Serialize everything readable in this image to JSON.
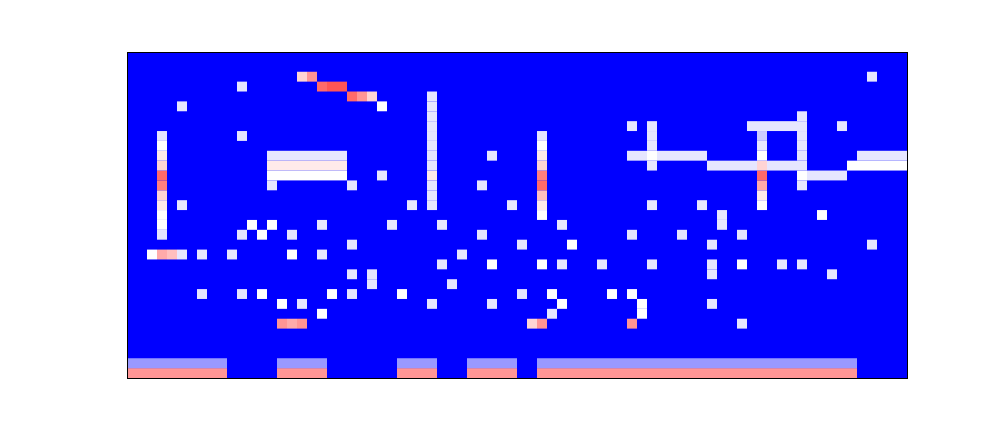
{
  "chart_data": {
    "type": "heatmap",
    "xlim": [
      0,
      78
    ],
    "ylim": [
      0,
      33
    ],
    "tick_labels": false,
    "color_range": [
      0,
      1
    ],
    "cells": [
      [
        17,
        30,
        0.6
      ],
      [
        18,
        30,
        0.75
      ],
      [
        19,
        29,
        0.85
      ],
      [
        20,
        29,
        0.9
      ],
      [
        21,
        29,
        0.9
      ],
      [
        22,
        28,
        0.85
      ],
      [
        23,
        28,
        0.75
      ],
      [
        24,
        28,
        0.6
      ],
      [
        25,
        27,
        0.5
      ],
      [
        3,
        14,
        0.45
      ],
      [
        3,
        15,
        0.5
      ],
      [
        3,
        16,
        0.5
      ],
      [
        3,
        17,
        0.55
      ],
      [
        3,
        18,
        0.6
      ],
      [
        3,
        19,
        0.8
      ],
      [
        3,
        20,
        0.85
      ],
      [
        3,
        21,
        0.6
      ],
      [
        3,
        22,
        0.55
      ],
      [
        3,
        23,
        0.5
      ],
      [
        3,
        24,
        0.45
      ],
      [
        41,
        16,
        0.5
      ],
      [
        41,
        17,
        0.55
      ],
      [
        41,
        18,
        0.65
      ],
      [
        41,
        19,
        0.85
      ],
      [
        41,
        20,
        0.8
      ],
      [
        41,
        21,
        0.6
      ],
      [
        41,
        22,
        0.55
      ],
      [
        41,
        23,
        0.5
      ],
      [
        41,
        24,
        0.45
      ],
      [
        63,
        17,
        0.5
      ],
      [
        63,
        18,
        0.55
      ],
      [
        63,
        19,
        0.7
      ],
      [
        63,
        20,
        0.85
      ],
      [
        63,
        21,
        0.6
      ],
      [
        63,
        22,
        0.5
      ],
      [
        63,
        23,
        0.45
      ],
      [
        63,
        24,
        0.4
      ],
      [
        30,
        17,
        0.45
      ],
      [
        30,
        18,
        0.45
      ],
      [
        30,
        19,
        0.45
      ],
      [
        30,
        20,
        0.55
      ],
      [
        30,
        21,
        0.45
      ],
      [
        30,
        22,
        0.45
      ],
      [
        30,
        23,
        0.45
      ],
      [
        30,
        24,
        0.45
      ],
      [
        30,
        25,
        0.45
      ],
      [
        30,
        26,
        0.45
      ],
      [
        30,
        27,
        0.45
      ],
      [
        30,
        28,
        0.45
      ],
      [
        52,
        21,
        0.45
      ],
      [
        52,
        22,
        0.5
      ],
      [
        52,
        23,
        0.45
      ],
      [
        52,
        24,
        0.45
      ],
      [
        52,
        25,
        0.45
      ],
      [
        67,
        19,
        0.45
      ],
      [
        67,
        20,
        0.5
      ],
      [
        67,
        21,
        0.45
      ],
      [
        67,
        22,
        0.45
      ],
      [
        67,
        23,
        0.45
      ],
      [
        67,
        24,
        0.45
      ],
      [
        67,
        25,
        0.45
      ],
      [
        67,
        26,
        0.45
      ],
      [
        50,
        22,
        0.45
      ],
      [
        51,
        22,
        0.45
      ],
      [
        53,
        22,
        0.45
      ],
      [
        54,
        22,
        0.45
      ],
      [
        55,
        22,
        0.45
      ],
      [
        56,
        22,
        0.45
      ],
      [
        57,
        22,
        0.45
      ],
      [
        58,
        21,
        0.45
      ],
      [
        59,
        21,
        0.45
      ],
      [
        60,
        21,
        0.45
      ],
      [
        61,
        21,
        0.45
      ],
      [
        62,
        21,
        0.45
      ],
      [
        64,
        21,
        0.45
      ],
      [
        65,
        21,
        0.45
      ],
      [
        66,
        21,
        0.45
      ],
      [
        68,
        20,
        0.45
      ],
      [
        69,
        20,
        0.45
      ],
      [
        70,
        20,
        0.45
      ],
      [
        71,
        20,
        0.45
      ],
      [
        72,
        21,
        0.5
      ],
      [
        73,
        21,
        0.5
      ],
      [
        74,
        21,
        0.5
      ],
      [
        75,
        21,
        0.5
      ],
      [
        76,
        21,
        0.5
      ],
      [
        77,
        21,
        0.5
      ],
      [
        73,
        22,
        0.45
      ],
      [
        74,
        22,
        0.45
      ],
      [
        75,
        22,
        0.45
      ],
      [
        76,
        22,
        0.45
      ],
      [
        77,
        22,
        0.45
      ],
      [
        14,
        22,
        0.45
      ],
      [
        15,
        22,
        0.45
      ],
      [
        16,
        22,
        0.45
      ],
      [
        17,
        22,
        0.45
      ],
      [
        18,
        22,
        0.45
      ],
      [
        19,
        22,
        0.45
      ],
      [
        20,
        22,
        0.45
      ],
      [
        21,
        22,
        0.45
      ],
      [
        14,
        21,
        0.55
      ],
      [
        15,
        21,
        0.55
      ],
      [
        16,
        21,
        0.55
      ],
      [
        17,
        21,
        0.55
      ],
      [
        18,
        21,
        0.55
      ],
      [
        19,
        21,
        0.55
      ],
      [
        20,
        21,
        0.55
      ],
      [
        21,
        21,
        0.55
      ],
      [
        14,
        20,
        0.5
      ],
      [
        15,
        20,
        0.5
      ],
      [
        16,
        20,
        0.5
      ],
      [
        17,
        20,
        0.5
      ],
      [
        18,
        20,
        0.5
      ],
      [
        19,
        20,
        0.5
      ],
      [
        20,
        20,
        0.5
      ],
      [
        21,
        20,
        0.5
      ],
      [
        62,
        25,
        0.45
      ],
      [
        63,
        25,
        0.45
      ],
      [
        64,
        25,
        0.45
      ],
      [
        65,
        25,
        0.45
      ],
      [
        66,
        25,
        0.45
      ],
      [
        2,
        12,
        0.5
      ],
      [
        3,
        12,
        0.7
      ],
      [
        4,
        12,
        0.65
      ],
      [
        5,
        12,
        0.45
      ],
      [
        0,
        0,
        0.75
      ],
      [
        1,
        0,
        0.75
      ],
      [
        2,
        0,
        0.75
      ],
      [
        3,
        0,
        0.75
      ],
      [
        4,
        0,
        0.75
      ],
      [
        5,
        0,
        0.75
      ],
      [
        6,
        0,
        0.75
      ],
      [
        7,
        0,
        0.75
      ],
      [
        8,
        0,
        0.75
      ],
      [
        9,
        0,
        0.75
      ],
      [
        15,
        0,
        0.75
      ],
      [
        16,
        0,
        0.75
      ],
      [
        17,
        0,
        0.75
      ],
      [
        18,
        0,
        0.75
      ],
      [
        19,
        0,
        0.75
      ],
      [
        27,
        0,
        0.75
      ],
      [
        28,
        0,
        0.75
      ],
      [
        29,
        0,
        0.75
      ],
      [
        30,
        0,
        0.75
      ],
      [
        34,
        0,
        0.75
      ],
      [
        35,
        0,
        0.75
      ],
      [
        36,
        0,
        0.75
      ],
      [
        37,
        0,
        0.75
      ],
      [
        38,
        0,
        0.75
      ],
      [
        41,
        0,
        0.75
      ],
      [
        42,
        0,
        0.75
      ],
      [
        43,
        0,
        0.75
      ],
      [
        44,
        0,
        0.75
      ],
      [
        45,
        0,
        0.75
      ],
      [
        46,
        0,
        0.75
      ],
      [
        47,
        0,
        0.75
      ],
      [
        48,
        0,
        0.75
      ],
      [
        49,
        0,
        0.75
      ],
      [
        50,
        0,
        0.75
      ],
      [
        51,
        0,
        0.75
      ],
      [
        52,
        0,
        0.75
      ],
      [
        53,
        0,
        0.75
      ],
      [
        54,
        0,
        0.75
      ],
      [
        55,
        0,
        0.75
      ],
      [
        56,
        0,
        0.75
      ],
      [
        57,
        0,
        0.75
      ],
      [
        58,
        0,
        0.75
      ],
      [
        59,
        0,
        0.75
      ],
      [
        60,
        0,
        0.75
      ],
      [
        61,
        0,
        0.75
      ],
      [
        62,
        0,
        0.75
      ],
      [
        63,
        0,
        0.75
      ],
      [
        64,
        0,
        0.75
      ],
      [
        65,
        0,
        0.75
      ],
      [
        66,
        0,
        0.75
      ],
      [
        67,
        0,
        0.75
      ],
      [
        68,
        0,
        0.75
      ],
      [
        69,
        0,
        0.75
      ],
      [
        70,
        0,
        0.75
      ],
      [
        71,
        0,
        0.75
      ],
      [
        72,
        0,
        0.75
      ],
      [
        0,
        1,
        0.3
      ],
      [
        1,
        1,
        0.3
      ],
      [
        2,
        1,
        0.3
      ],
      [
        3,
        1,
        0.3
      ],
      [
        4,
        1,
        0.3
      ],
      [
        5,
        1,
        0.3
      ],
      [
        6,
        1,
        0.3
      ],
      [
        7,
        1,
        0.3
      ],
      [
        8,
        1,
        0.3
      ],
      [
        9,
        1,
        0.3
      ],
      [
        15,
        1,
        0.3
      ],
      [
        16,
        1,
        0.3
      ],
      [
        17,
        1,
        0.3
      ],
      [
        18,
        1,
        0.3
      ],
      [
        19,
        1,
        0.3
      ],
      [
        27,
        1,
        0.3
      ],
      [
        28,
        1,
        0.3
      ],
      [
        29,
        1,
        0.3
      ],
      [
        30,
        1,
        0.3
      ],
      [
        34,
        1,
        0.3
      ],
      [
        35,
        1,
        0.3
      ],
      [
        36,
        1,
        0.3
      ],
      [
        37,
        1,
        0.3
      ],
      [
        38,
        1,
        0.3
      ],
      [
        41,
        1,
        0.3
      ],
      [
        42,
        1,
        0.3
      ],
      [
        43,
        1,
        0.3
      ],
      [
        44,
        1,
        0.3
      ],
      [
        45,
        1,
        0.3
      ],
      [
        46,
        1,
        0.3
      ],
      [
        47,
        1,
        0.3
      ],
      [
        48,
        1,
        0.3
      ],
      [
        49,
        1,
        0.3
      ],
      [
        50,
        1,
        0.3
      ],
      [
        51,
        1,
        0.3
      ],
      [
        52,
        1,
        0.3
      ],
      [
        53,
        1,
        0.3
      ],
      [
        54,
        1,
        0.3
      ],
      [
        55,
        1,
        0.3
      ],
      [
        56,
        1,
        0.3
      ],
      [
        57,
        1,
        0.3
      ],
      [
        58,
        1,
        0.3
      ],
      [
        59,
        1,
        0.3
      ],
      [
        60,
        1,
        0.3
      ],
      [
        61,
        1,
        0.3
      ],
      [
        62,
        1,
        0.3
      ],
      [
        63,
        1,
        0.3
      ],
      [
        64,
        1,
        0.3
      ],
      [
        65,
        1,
        0.3
      ],
      [
        66,
        1,
        0.3
      ],
      [
        67,
        1,
        0.3
      ],
      [
        68,
        1,
        0.3
      ],
      [
        69,
        1,
        0.3
      ],
      [
        70,
        1,
        0.3
      ],
      [
        71,
        1,
        0.3
      ],
      [
        72,
        1,
        0.3
      ],
      [
        5,
        27,
        0.45
      ],
      [
        11,
        29,
        0.45
      ],
      [
        11,
        24,
        0.45
      ],
      [
        5,
        17,
        0.45
      ],
      [
        14,
        19,
        0.45
      ],
      [
        22,
        19,
        0.45
      ],
      [
        25,
        20,
        0.45
      ],
      [
        36,
        22,
        0.45
      ],
      [
        35,
        19,
        0.45
      ],
      [
        38,
        17,
        0.45
      ],
      [
        50,
        25,
        0.45
      ],
      [
        52,
        17,
        0.45
      ],
      [
        57,
        17,
        0.45
      ],
      [
        59,
        16,
        0.45
      ],
      [
        69,
        16,
        0.5
      ],
      [
        71,
        25,
        0.45
      ],
      [
        74,
        30,
        0.45
      ],
      [
        28,
        17,
        0.45
      ],
      [
        12,
        15,
        0.5
      ],
      [
        14,
        15,
        0.5
      ],
      [
        11,
        14,
        0.45
      ],
      [
        13,
        14,
        0.5
      ],
      [
        16,
        14,
        0.45
      ],
      [
        19,
        15,
        0.45
      ],
      [
        22,
        13,
        0.45
      ],
      [
        26,
        15,
        0.45
      ],
      [
        31,
        15,
        0.45
      ],
      [
        33,
        12,
        0.45
      ],
      [
        35,
        14,
        0.45
      ],
      [
        39,
        13,
        0.45
      ],
      [
        43,
        15,
        0.45
      ],
      [
        44,
        13,
        0.5
      ],
      [
        50,
        14,
        0.45
      ],
      [
        55,
        14,
        0.45
      ],
      [
        58,
        13,
        0.45
      ],
      [
        61,
        14,
        0.45
      ],
      [
        74,
        13,
        0.45
      ],
      [
        59,
        15,
        0.45
      ],
      [
        7,
        12,
        0.45
      ],
      [
        10,
        12,
        0.45
      ],
      [
        16,
        12,
        0.5
      ],
      [
        19,
        12,
        0.45
      ],
      [
        31,
        11,
        0.45
      ],
      [
        36,
        11,
        0.5
      ],
      [
        41,
        11,
        0.5
      ],
      [
        43,
        11,
        0.45
      ],
      [
        47,
        11,
        0.45
      ],
      [
        52,
        11,
        0.45
      ],
      [
        58,
        11,
        0.45
      ],
      [
        61,
        11,
        0.5
      ],
      [
        65,
        11,
        0.45
      ],
      [
        67,
        11,
        0.45
      ],
      [
        70,
        10,
        0.45
      ],
      [
        58,
        10,
        0.45
      ],
      [
        7,
        8,
        0.45
      ],
      [
        11,
        8,
        0.45
      ],
      [
        13,
        8,
        0.5
      ],
      [
        15,
        7,
        0.5
      ],
      [
        17,
        7,
        0.45
      ],
      [
        20,
        8,
        0.5
      ],
      [
        22,
        8,
        0.45
      ],
      [
        24,
        9,
        0.45
      ],
      [
        27,
        8,
        0.5
      ],
      [
        30,
        7,
        0.45
      ],
      [
        36,
        7,
        0.45
      ],
      [
        39,
        8,
        0.45
      ],
      [
        42,
        8,
        0.5
      ],
      [
        43,
        7,
        0.5
      ],
      [
        42,
        6,
        0.45
      ],
      [
        48,
        8,
        0.5
      ],
      [
        50,
        8,
        0.5
      ],
      [
        51,
        7,
        0.5
      ],
      [
        58,
        7,
        0.45
      ],
      [
        15,
        5,
        0.75
      ],
      [
        16,
        5,
        0.7
      ],
      [
        17,
        5,
        0.75
      ],
      [
        19,
        6,
        0.5
      ],
      [
        40,
        5,
        0.6
      ],
      [
        41,
        5,
        0.75
      ],
      [
        50,
        5,
        0.75
      ],
      [
        51,
        6,
        0.5
      ],
      [
        61,
        5,
        0.45
      ],
      [
        22,
        10,
        0.45
      ],
      [
        32,
        9,
        0.45
      ],
      [
        24,
        10,
        0.45
      ]
    ]
  }
}
